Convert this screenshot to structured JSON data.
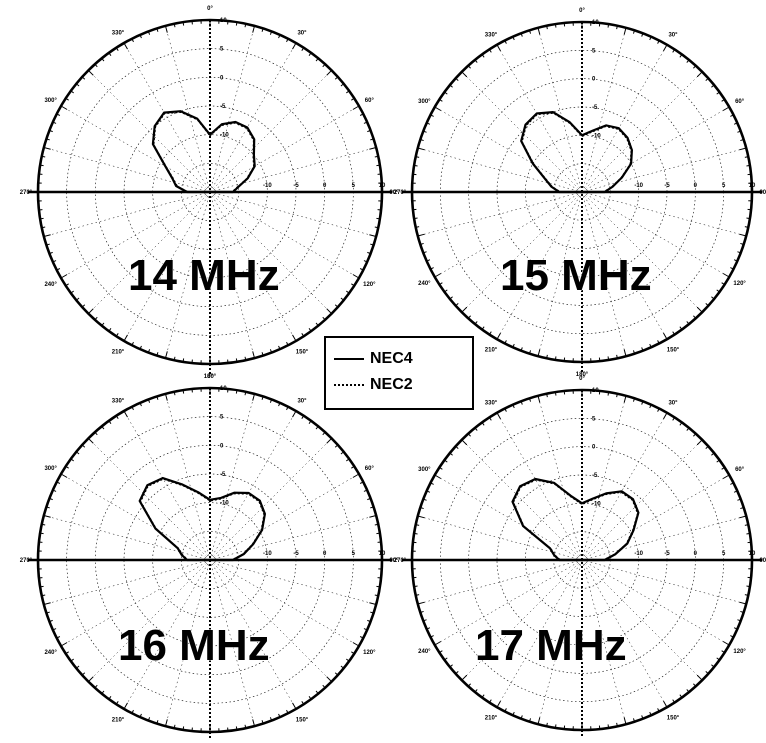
{
  "chart_data": [
    {
      "type": "polar-line",
      "label": "14 MHz",
      "radial_tick_labels": [
        "10",
        "5",
        "0",
        "-5",
        "-10"
      ],
      "series": [
        {
          "name": "NEC4",
          "angles_deg": [
            0,
            10,
            20,
            30,
            40,
            50,
            60,
            70,
            80,
            90,
            100,
            110,
            120,
            130,
            140,
            150,
            160,
            170,
            180
          ],
          "values": [
            -16.0,
            -15.0,
            -13.0,
            -11.0,
            -10.0,
            -8.0,
            -7.0,
            -7.0,
            -8.0,
            -10.0,
            -7.0,
            -5.0,
            -4.0,
            -5.0,
            -7.0,
            -11.0,
            -13.0,
            -14.0,
            -16.0
          ]
        },
        {
          "name": "NEC2",
          "angles_deg": [
            0,
            10,
            20,
            30,
            40,
            50,
            60,
            70,
            80,
            90,
            100,
            110,
            120,
            130,
            140,
            150,
            160,
            170,
            180
          ],
          "values": [
            -16.2,
            -15.2,
            -13.2,
            -11.2,
            -10.2,
            -8.2,
            -7.2,
            -7.2,
            -8.2,
            -10.2,
            -7.2,
            -5.2,
            -4.2,
            -5.2,
            -7.2,
            -11.2,
            -13.2,
            -14.2,
            -16.2
          ]
        }
      ]
    },
    {
      "type": "polar-line",
      "label": "15 MHz",
      "radial_tick_labels": [
        "10",
        "5",
        "0",
        "-5",
        "-10"
      ],
      "series": [
        {
          "name": "NEC4",
          "angles_deg": [
            0,
            10,
            20,
            30,
            40,
            50,
            60,
            70,
            80,
            90,
            100,
            110,
            120,
            130,
            140,
            150,
            160,
            170,
            180
          ],
          "values": [
            -16.0,
            -14.5,
            -12.5,
            -10.0,
            -8.5,
            -7.5,
            -7.0,
            -7.5,
            -9.0,
            -10.0,
            -7.5,
            -5.0,
            -4.0,
            -4.5,
            -6.0,
            -10.0,
            -13.0,
            -14.5,
            -16.0
          ]
        },
        {
          "name": "NEC2",
          "angles_deg": [
            0,
            10,
            20,
            30,
            40,
            50,
            60,
            70,
            80,
            90,
            100,
            110,
            120,
            130,
            140,
            150,
            160,
            170,
            180
          ],
          "values": [
            -16.2,
            -14.7,
            -12.7,
            -10.2,
            -8.7,
            -7.7,
            -7.2,
            -7.7,
            -9.2,
            -10.2,
            -7.7,
            -5.2,
            -4.2,
            -4.7,
            -6.2,
            -10.2,
            -13.2,
            -14.7,
            -16.2
          ]
        }
      ]
    },
    {
      "type": "polar-line",
      "label": "16 MHz",
      "radial_tick_labels": [
        "10",
        "5",
        "0",
        "-5",
        "-10"
      ],
      "series": [
        {
          "name": "NEC4",
          "angles_deg": [
            0,
            10,
            20,
            30,
            40,
            50,
            60,
            70,
            80,
            90,
            100,
            110,
            120,
            130,
            140,
            150,
            160,
            170,
            180
          ],
          "values": [
            -16.0,
            -14.0,
            -12.0,
            -9.5,
            -7.5,
            -6.5,
            -6.5,
            -7.5,
            -9.0,
            -9.5,
            -8.0,
            -6.0,
            -3.5,
            -3.0,
            -4.0,
            -9.0,
            -14.0,
            -15.0,
            -16.0
          ]
        },
        {
          "name": "NEC2",
          "angles_deg": [
            0,
            10,
            20,
            30,
            40,
            50,
            60,
            70,
            80,
            90,
            100,
            110,
            120,
            130,
            140,
            150,
            160,
            170,
            180
          ],
          "values": [
            -16.2,
            -14.2,
            -12.2,
            -9.7,
            -7.7,
            -6.7,
            -6.7,
            -7.7,
            -9.2,
            -9.7,
            -8.2,
            -6.2,
            -3.7,
            -3.2,
            -4.2,
            -9.2,
            -14.2,
            -15.2,
            -16.2
          ]
        }
      ]
    },
    {
      "type": "polar-line",
      "label": "17 MHz",
      "radial_tick_labels": [
        "10",
        "5",
        "0",
        "-5",
        "-10"
      ],
      "series": [
        {
          "name": "NEC4",
          "angles_deg": [
            0,
            10,
            20,
            30,
            40,
            50,
            60,
            70,
            80,
            90,
            100,
            110,
            120,
            130,
            140,
            150,
            160,
            170,
            180
          ],
          "values": [
            -16.0,
            -14.0,
            -11.5,
            -9.5,
            -7.0,
            -6.0,
            -6.0,
            -7.5,
            -9.0,
            -10.0,
            -8.5,
            -5.5,
            -3.5,
            -3.0,
            -4.0,
            -8.0,
            -14.0,
            -15.0,
            -16.0
          ]
        },
        {
          "name": "NEC2",
          "angles_deg": [
            0,
            10,
            20,
            30,
            40,
            50,
            60,
            70,
            80,
            90,
            100,
            110,
            120,
            130,
            140,
            150,
            160,
            170,
            180
          ],
          "values": [
            -16.2,
            -14.2,
            -11.7,
            -9.7,
            -7.2,
            -6.2,
            -6.2,
            -7.7,
            -9.2,
            -10.2,
            -8.7,
            -5.7,
            -3.7,
            -3.2,
            -4.2,
            -8.2,
            -14.2,
            -15.2,
            -16.2
          ]
        }
      ]
    }
  ],
  "legend": {
    "items": [
      {
        "name": "NEC4",
        "style": "solid"
      },
      {
        "name": "NEC2",
        "style": "dotted"
      }
    ]
  }
}
